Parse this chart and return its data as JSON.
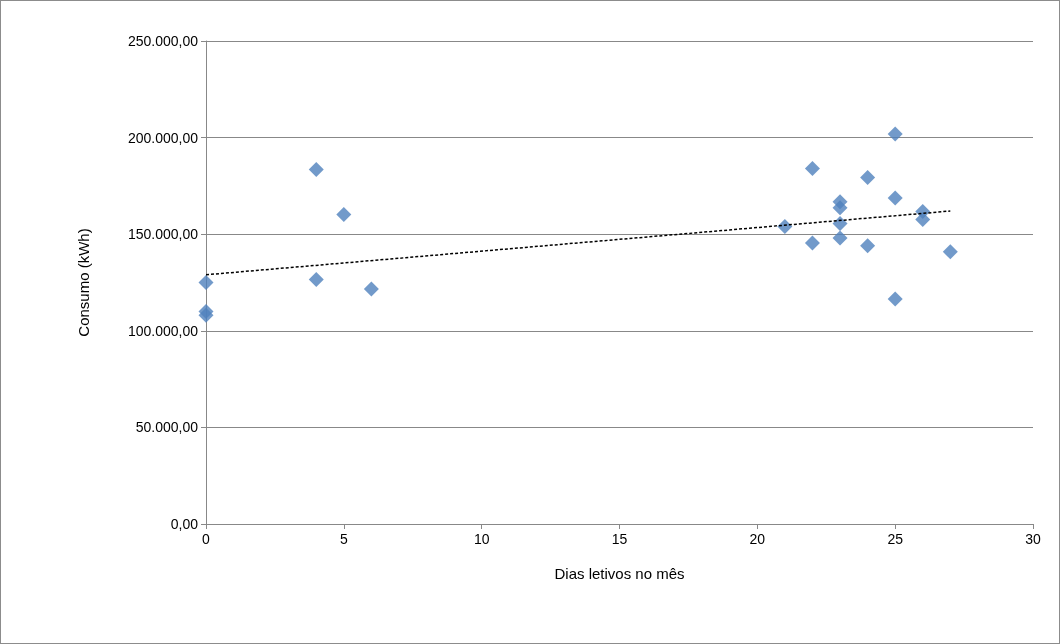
{
  "chart_data": {
    "type": "scatter",
    "xlabel": "Dias letivos no mês",
    "ylabel": "Consumo (kWh)",
    "marker": "diamond",
    "grid": "y",
    "xlim": [
      0,
      30
    ],
    "xticks": [
      0,
      5,
      10,
      15,
      20,
      25,
      30
    ],
    "ylim": [
      0,
      250000
    ],
    "yticks": [
      {
        "value": 0,
        "label": "0,00"
      },
      {
        "value": 50000,
        "label": "50.000,00"
      },
      {
        "value": 100000,
        "label": "100.000,00"
      },
      {
        "value": 150000,
        "label": "150.000,00"
      },
      {
        "value": 200000,
        "label": "200.000,00"
      },
      {
        "value": 250000,
        "label": "250.000,00"
      }
    ],
    "series": [
      {
        "color": "#4f81bd",
        "x": [
          0,
          0,
          0,
          4,
          4,
          5,
          6,
          21,
          22,
          22,
          23,
          23,
          23,
          23,
          24,
          24,
          25,
          25,
          25,
          26,
          26,
          27
        ],
        "values": [
          125000,
          110000,
          108000,
          183500,
          126600,
          160200,
          121600,
          154000,
          184000,
          145400,
          166800,
          163700,
          155600,
          148000,
          179400,
          144000,
          201800,
          168800,
          116500,
          161700,
          157600,
          140900
        ]
      },
      {
        "type": "line",
        "color": "#000000",
        "line_style": "dashed",
        "marker": "none",
        "x": [
          0,
          27
        ],
        "values": [
          129000,
          162000
        ]
      }
    ]
  }
}
